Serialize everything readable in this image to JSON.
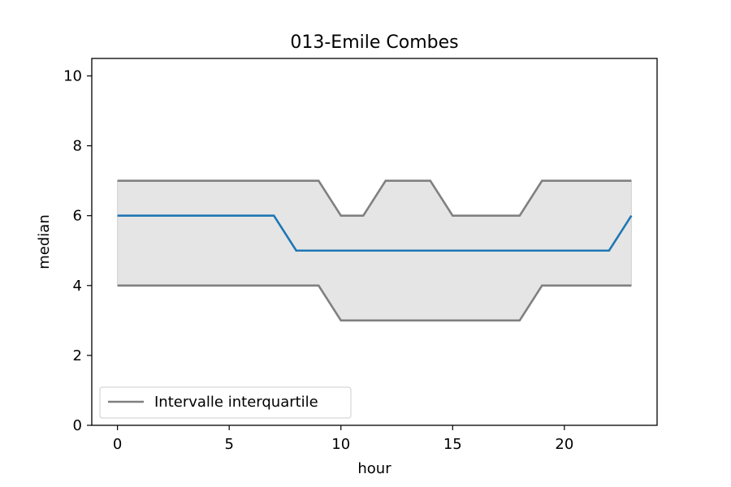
{
  "chart_data": {
    "type": "line",
    "title": "013-Emile Combes",
    "xlabel": "hour",
    "ylabel": "median",
    "xlim": [
      -1.15,
      24.15
    ],
    "ylim": [
      0,
      10.5
    ],
    "xticks": [
      0,
      5,
      10,
      15,
      20
    ],
    "yticks": [
      0,
      2,
      4,
      6,
      8,
      10
    ],
    "x": [
      0,
      1,
      2,
      3,
      4,
      5,
      6,
      7,
      8,
      9,
      10,
      11,
      12,
      13,
      14,
      15,
      16,
      17,
      18,
      19,
      20,
      21,
      22,
      23
    ],
    "median": {
      "color": "#1f77b4",
      "values": [
        6,
        6,
        6,
        6,
        6,
        6,
        6,
        6,
        5,
        5,
        5,
        5,
        5,
        5,
        5,
        5,
        5,
        5,
        5,
        5,
        5,
        5,
        5,
        6
      ]
    },
    "q1": {
      "color": "#808080",
      "values": [
        4,
        4,
        4,
        4,
        4,
        4,
        4,
        4,
        4,
        4,
        3,
        3,
        3,
        3,
        3,
        3,
        3,
        3,
        3,
        4,
        4,
        4,
        4,
        4
      ]
    },
    "q3": {
      "color": "#808080",
      "values": [
        7,
        7,
        7,
        7,
        7,
        7,
        7,
        7,
        7,
        7,
        6,
        6,
        7,
        7,
        7,
        6,
        6,
        6,
        6,
        7,
        7,
        7,
        7,
        7
      ]
    },
    "band_color": "#e5e5e5",
    "grid": false,
    "legend": {
      "placement": "lower-left",
      "entries": [
        {
          "label": "Intervalle interquartile",
          "color": "#808080"
        }
      ]
    }
  }
}
